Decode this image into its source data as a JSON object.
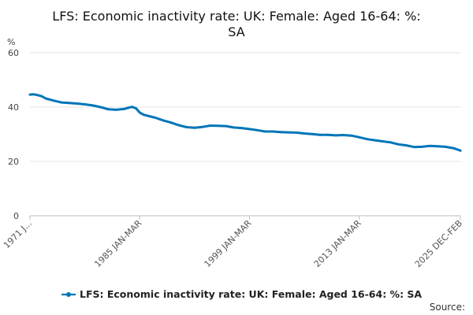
{
  "chart_data": {
    "type": "line",
    "title": "LFS: Economic inactivity rate: UK: Female: Aged 16-64: %: SA",
    "ylabel": "%",
    "xlabel": "",
    "ylim": [
      0,
      60
    ],
    "yticks": [
      "0",
      "20",
      "40",
      "60"
    ],
    "x_range_years": [
      1971.0,
      2025.9
    ],
    "xticks": [
      {
        "label": "1971 J...",
        "x": 1971.0
      },
      {
        "label": "1985 JAN-MAR",
        "x": 1985.0
      },
      {
        "label": "1999 JAN-MAR",
        "x": 1999.0
      },
      {
        "label": "2013 JAN-MAR",
        "x": 2013.0
      },
      {
        "label": "2025 DEC-FEB",
        "x": 2025.9
      }
    ],
    "grid": true,
    "legend": "bottom",
    "color": "#0075b8",
    "series": [
      {
        "name": "LFS: Economic inactivity rate: UK: Female: Aged 16-64: %: SA",
        "x": [
          1971.0,
          1971.5,
          1972.0,
          1972.5,
          1973.0,
          1974.0,
          1975.0,
          1976.0,
          1977.0,
          1978.0,
          1979.0,
          1980.0,
          1981.0,
          1982.0,
          1983.0,
          1983.5,
          1984.0,
          1984.5,
          1985.0,
          1985.5,
          1986.0,
          1987.0,
          1988.0,
          1989.0,
          1990.0,
          1991.0,
          1992.0,
          1993.0,
          1994.0,
          1995.0,
          1996.0,
          1997.0,
          1998.0,
          1999.0,
          2000.0,
          2001.0,
          2002.0,
          2003.0,
          2004.0,
          2005.0,
          2006.0,
          2007.0,
          2008.0,
          2009.0,
          2010.0,
          2011.0,
          2012.0,
          2013.0,
          2014.0,
          2015.0,
          2016.0,
          2017.0,
          2018.0,
          2019.0,
          2020.0,
          2021.0,
          2022.0,
          2023.0,
          2024.0,
          2025.0,
          2025.9
        ],
        "values": [
          44.6,
          44.7,
          44.4,
          44.0,
          43.2,
          42.4,
          41.7,
          41.5,
          41.3,
          41.0,
          40.6,
          40.0,
          39.2,
          39.0,
          39.3,
          39.7,
          40.1,
          39.6,
          38.0,
          37.2,
          36.8,
          36.1,
          35.1,
          34.3,
          33.3,
          32.6,
          32.4,
          32.7,
          33.2,
          33.1,
          33.0,
          32.5,
          32.3,
          31.9,
          31.5,
          31.0,
          31.0,
          30.8,
          30.7,
          30.6,
          30.3,
          30.1,
          29.8,
          29.8,
          29.6,
          29.7,
          29.5,
          28.9,
          28.2,
          27.8,
          27.4,
          27.0,
          26.3,
          25.9,
          25.3,
          25.4,
          25.7,
          25.6,
          25.4,
          24.9,
          24.0
        ]
      }
    ]
  },
  "source_label": "Source:"
}
